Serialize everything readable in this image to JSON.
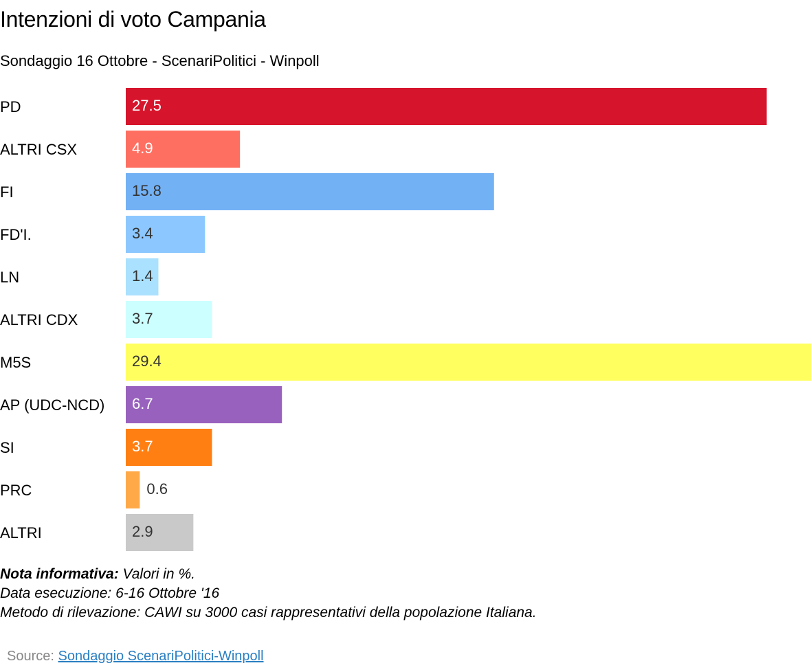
{
  "chart_data": {
    "type": "bar",
    "orientation": "horizontal",
    "title": "Intenzioni di voto Campania",
    "subtitle": "Sondaggio 16 Ottobre - ScenariPolitici - Winpoll",
    "categories": [
      "PD",
      "ALTRI CSX",
      "FI",
      "FD'I.",
      "LN",
      "ALTRI CDX",
      "M5S",
      "AP (UDC-NCD)",
      "SI",
      "PRC",
      "ALTRI"
    ],
    "values": [
      27.5,
      4.9,
      15.8,
      3.4,
      1.4,
      3.7,
      29.4,
      6.7,
      3.7,
      0.6,
      2.9
    ],
    "value_labels": [
      "27.5",
      "4.9",
      "15.8",
      "3.4",
      "1.4",
      "3.7",
      "29.4",
      "6.7",
      "3.7",
      "0.6",
      "2.9"
    ],
    "bar_colors": [
      "#d6152c",
      "#ff6f61",
      "#73b1f5",
      "#8cc8ff",
      "#a9e1ff",
      "#ccffff",
      "#ffff5f",
      "#9861be",
      "#ff7f12",
      "#ffa949",
      "#c9c9c9"
    ],
    "label_colors": [
      "#ffffff",
      "#ffffff",
      "#333333",
      "#333333",
      "#333333",
      "#333333",
      "#333333",
      "#ffffff",
      "#ffffff",
      "#333333",
      "#333333"
    ],
    "xlim": [
      0,
      29.4
    ],
    "grid": false,
    "legend": "none"
  },
  "notes": {
    "bold_label": "Nota informativa:",
    "line1_rest": " Valori in %.",
    "line2": "Data esecuzione: 6-16  Ottobre '16",
    "line3": "Metodo di rilevazione: CAWI su 3000 casi rappresentativi della popolazione Italiana."
  },
  "source": {
    "label": "Source: ",
    "link_text": "Sondaggio ScenariPolitici-Winpoll"
  }
}
